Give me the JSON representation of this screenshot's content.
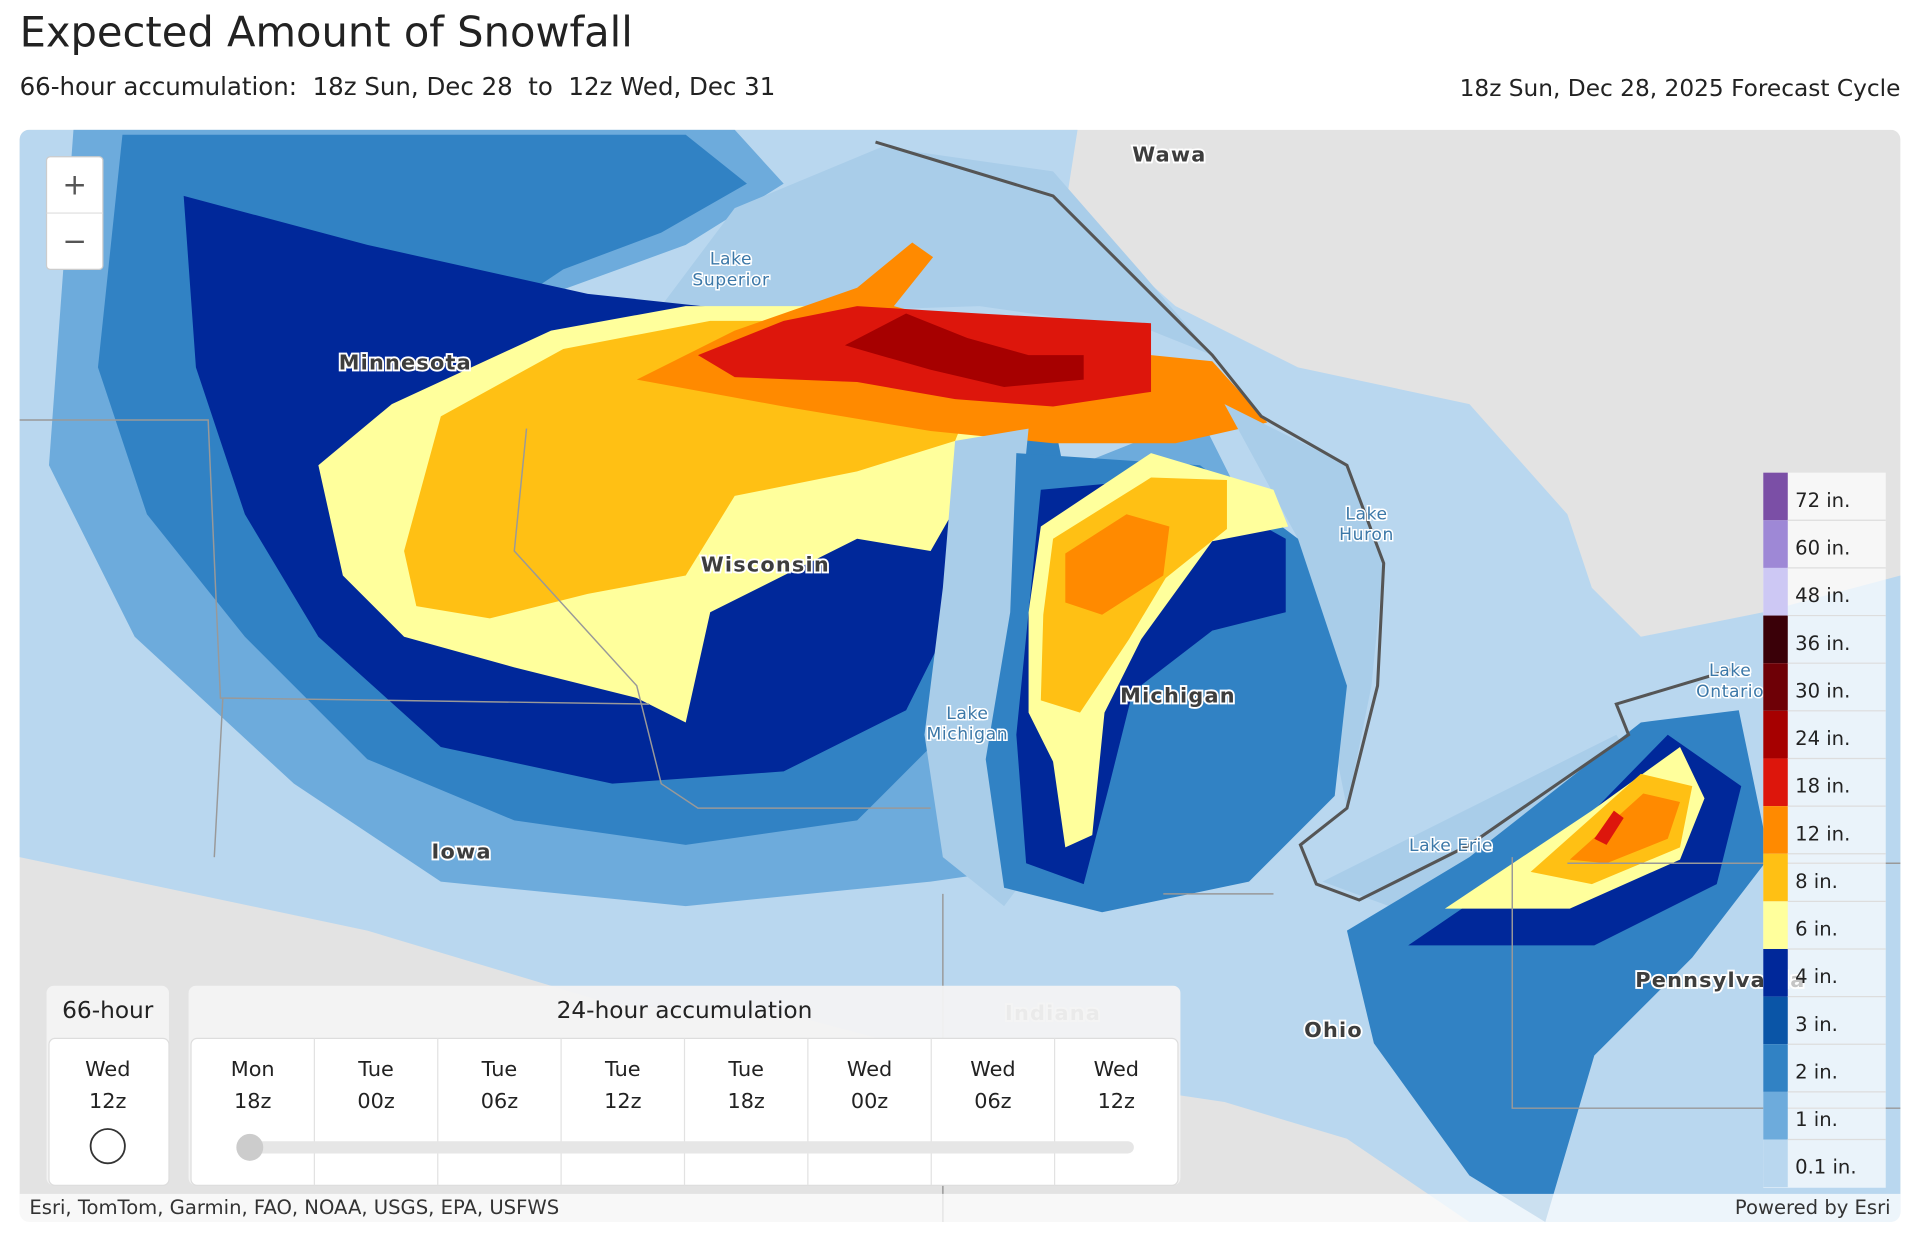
{
  "header": {
    "title": "Expected Amount of Snowfall",
    "subtitle": "66-hour accumulation:  18z Sun, Dec 28  to  12z Wed, Dec 31",
    "forecast_cycle": "18z Sun, Dec 28, 2025 Forecast Cycle"
  },
  "map": {
    "labels": [
      {
        "lines": [
          "Wawa"
        ],
        "kind": "place"
      },
      {
        "lines": [
          "Lake",
          "Superior"
        ],
        "kind": "water"
      },
      {
        "lines": [
          "Minnesota"
        ],
        "kind": "place"
      },
      {
        "lines": [
          "Wisconsin"
        ],
        "kind": "place"
      },
      {
        "lines": [
          "Lake",
          "Huron"
        ],
        "kind": "water"
      },
      {
        "lines": [
          "Lake",
          "Michigan"
        ],
        "kind": "water"
      },
      {
        "lines": [
          "Michigan"
        ],
        "kind": "place"
      },
      {
        "lines": [
          "Lake",
          "Ontario"
        ],
        "kind": "water"
      },
      {
        "lines": [
          "Lake Erie"
        ],
        "kind": "water"
      },
      {
        "lines": [
          "Iowa"
        ],
        "kind": "place"
      },
      {
        "lines": [
          "Indiana"
        ],
        "kind": "place"
      },
      {
        "lines": [
          "Ohio"
        ],
        "kind": "place"
      },
      {
        "lines": [
          "Pennsylvania"
        ],
        "kind": "place"
      }
    ]
  },
  "zoom": {
    "in": "+",
    "out": "−"
  },
  "legend": {
    "items": [
      {
        "label": "72 in.",
        "color": "#7b4fa6"
      },
      {
        "label": "60 in.",
        "color": "#9e88d6"
      },
      {
        "label": "48 in.",
        "color": "#cdc8f4"
      },
      {
        "label": "36 in.",
        "color": "#3a0008"
      },
      {
        "label": "30 in.",
        "color": "#6e0006"
      },
      {
        "label": "24 in.",
        "color": "#a60000"
      },
      {
        "label": "18 in.",
        "color": "#dd160c"
      },
      {
        "label": "12 in.",
        "color": "#ff8a00"
      },
      {
        "label": "8 in.",
        "color": "#ffc014"
      },
      {
        "label": "6 in.",
        "color": "#ffff9c"
      },
      {
        "label": "4 in.",
        "color": "#00289a"
      },
      {
        "label": "3 in.",
        "color": "#0a55a7"
      },
      {
        "label": "2 in.",
        "color": "#3182c4"
      },
      {
        "label": "1 in.",
        "color": "#6dabdc"
      },
      {
        "label": "0.1 in.",
        "color": "#b9d7ef"
      }
    ]
  },
  "time_control": {
    "total": {
      "heading": "66-hour",
      "day": "Wed",
      "hour": "12z"
    },
    "daily": {
      "heading": "24-hour accumulation",
      "steps": [
        {
          "day": "Mon",
          "hour": "18z"
        },
        {
          "day": "Tue",
          "hour": "00z"
        },
        {
          "day": "Tue",
          "hour": "06z"
        },
        {
          "day": "Tue",
          "hour": "12z"
        },
        {
          "day": "Tue",
          "hour": "18z"
        },
        {
          "day": "Wed",
          "hour": "00z"
        },
        {
          "day": "Wed",
          "hour": "06z"
        },
        {
          "day": "Wed",
          "hour": "12z"
        }
      ]
    }
  },
  "attribution": {
    "sources": "Esri, TomTom, Garmin, FAO, NOAA, USGS, EPA, USFWS",
    "powered": "Powered by Esri"
  }
}
